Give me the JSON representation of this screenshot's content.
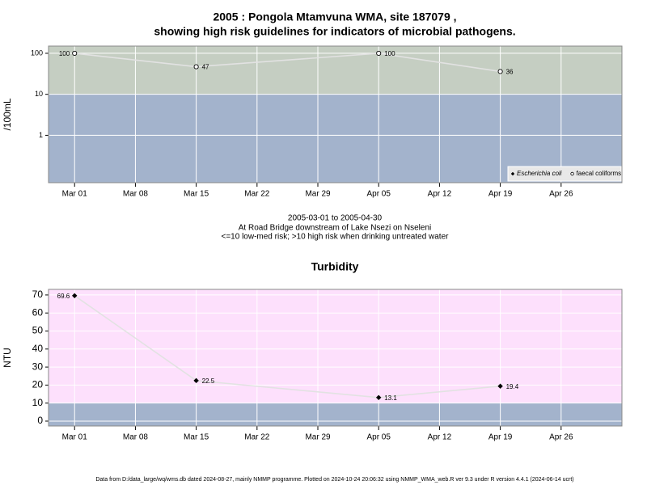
{
  "chart_data": [
    {
      "type": "line",
      "title": [
        "2005 : Pongola Mtamvuna WMA, site 187079 ,",
        "showing high risk guidelines for indicators of microbial pathogens."
      ],
      "ylabel": "/100mL",
      "log_scale": true,
      "x": [
        "Mar 01",
        "Mar 15",
        "Apr 05",
        "Apr 19"
      ],
      "xlim": [
        "Feb 26",
        "May 03"
      ],
      "xticks": [
        "Mar 01",
        "Mar 08",
        "Mar 15",
        "Mar 22",
        "Mar 29",
        "Apr 05",
        "Apr 12",
        "Apr 19",
        "Apr 26"
      ],
      "ylim": [
        0.07,
        150
      ],
      "yticks": [
        1,
        10,
        100
      ],
      "threshold": 10,
      "band_colors": [
        "#c5cec2",
        "#a3b3cc"
      ],
      "grid": true,
      "legend": "lower right",
      "series": [
        {
          "name": "Escherichia coli",
          "marker": "diamond",
          "color": "#000000",
          "values": [
            null,
            null,
            null,
            null
          ]
        },
        {
          "name": "faecal coliforms",
          "marker": "circle",
          "color": "#000000",
          "values": [
            100,
            47,
            100,
            36
          ]
        }
      ],
      "caption": [
        "2005-03-01 to 2005-04-30",
        "At Road Bridge downstream of Lake Nsezi on Nseleni",
        "<=10 low-med risk; >10 high risk when drinking untreated water"
      ]
    },
    {
      "type": "line",
      "title": [
        "Turbidity"
      ],
      "ylabel": "NTU",
      "log_scale": false,
      "x": [
        "Mar 01",
        "Mar 15",
        "Apr 05",
        "Apr 19"
      ],
      "xlim": [
        "Feb 26",
        "May 03"
      ],
      "xticks": [
        "Mar 01",
        "Mar 08",
        "Mar 15",
        "Mar 22",
        "Mar 29",
        "Apr 05",
        "Apr 12",
        "Apr 19",
        "Apr 26"
      ],
      "ylim": [
        -2.7,
        73.1
      ],
      "yticks": [
        0,
        10,
        20,
        30,
        40,
        50,
        60,
        70
      ],
      "threshold": 10,
      "band_colors": [
        "#fde0fc",
        "#a3b3cc"
      ],
      "grid": true,
      "series": [
        {
          "marker": "diamond",
          "color": "#000000",
          "values": [
            69.6,
            22.5,
            13.1,
            19.4
          ]
        }
      ]
    }
  ],
  "footer": "Data from D:/data_large/wq/wms.db dated 2024-08-27, mainly NMMP programme. Plotted on 2024-10-24 20:06:32 using NMMP_WMA_web.R ver 9.3 under R version 4.4.1 (2024-06-14 ucrt)"
}
